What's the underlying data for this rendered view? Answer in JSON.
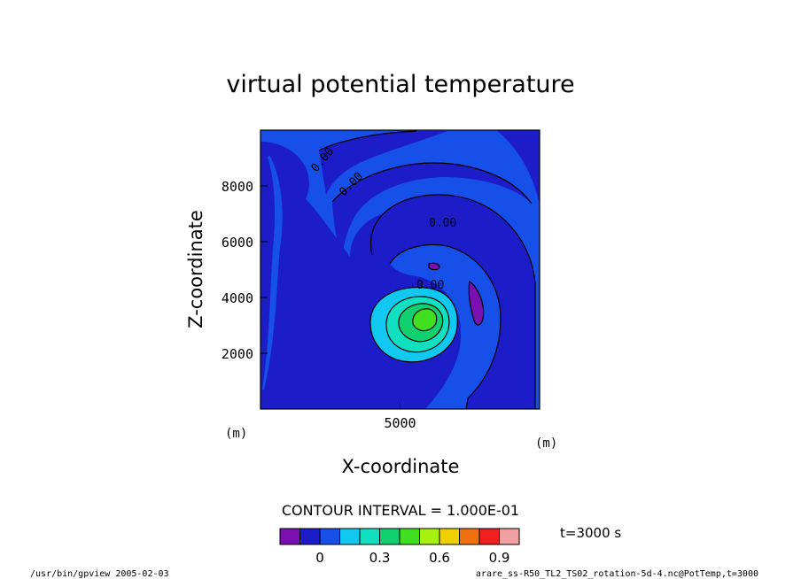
{
  "chart_data": {
    "type": "contour",
    "title": "virtual potential temperature",
    "xlabel": "X-coordinate",
    "ylabel": "Z-coordinate",
    "x_unit": "(m)",
    "y_unit": "(m)",
    "xlim": [
      0,
      10000
    ],
    "ylim": [
      0,
      10000
    ],
    "x_ticks": [
      5000
    ],
    "y_ticks": [
      2000,
      4000,
      6000,
      8000
    ],
    "contour_labels": [
      "0.00",
      "0.00",
      "0.00",
      "0.00"
    ],
    "contour_interval_text": "CONTOUR INTERVAL = 1.000E-01",
    "time_text": "t=3000 s",
    "colorbar": {
      "colors": [
        "#7a10b0",
        "#1c1cc8",
        "#1650e8",
        "#10c8f0",
        "#10e0c0",
        "#10d070",
        "#40e020",
        "#a8f010",
        "#f0d000",
        "#f07010",
        "#f02020",
        "#f0a0a0"
      ],
      "tick_labels": [
        "0",
        "0.3",
        "0.6",
        "0.9"
      ],
      "tick_values": [
        0,
        0.3,
        0.6,
        0.9
      ],
      "min": -0.2,
      "max": 1.0
    },
    "background_color": "#1c1cc8",
    "field_colors": {
      "level_0": "#1650e8",
      "level_neg": "#1c1cc8",
      "level_min": "#7a10b0",
      "level_1": "#10c8f0",
      "level_2": "#10e0c0",
      "level_3": "#10d070",
      "level_4": "#40e020"
    }
  },
  "footer": {
    "left": "/usr/bin/gpview  2005-02-03",
    "right": "arare_ss-R50_TL2_TS02_rotation-5d-4.nc@PotTemp,t=3000"
  }
}
